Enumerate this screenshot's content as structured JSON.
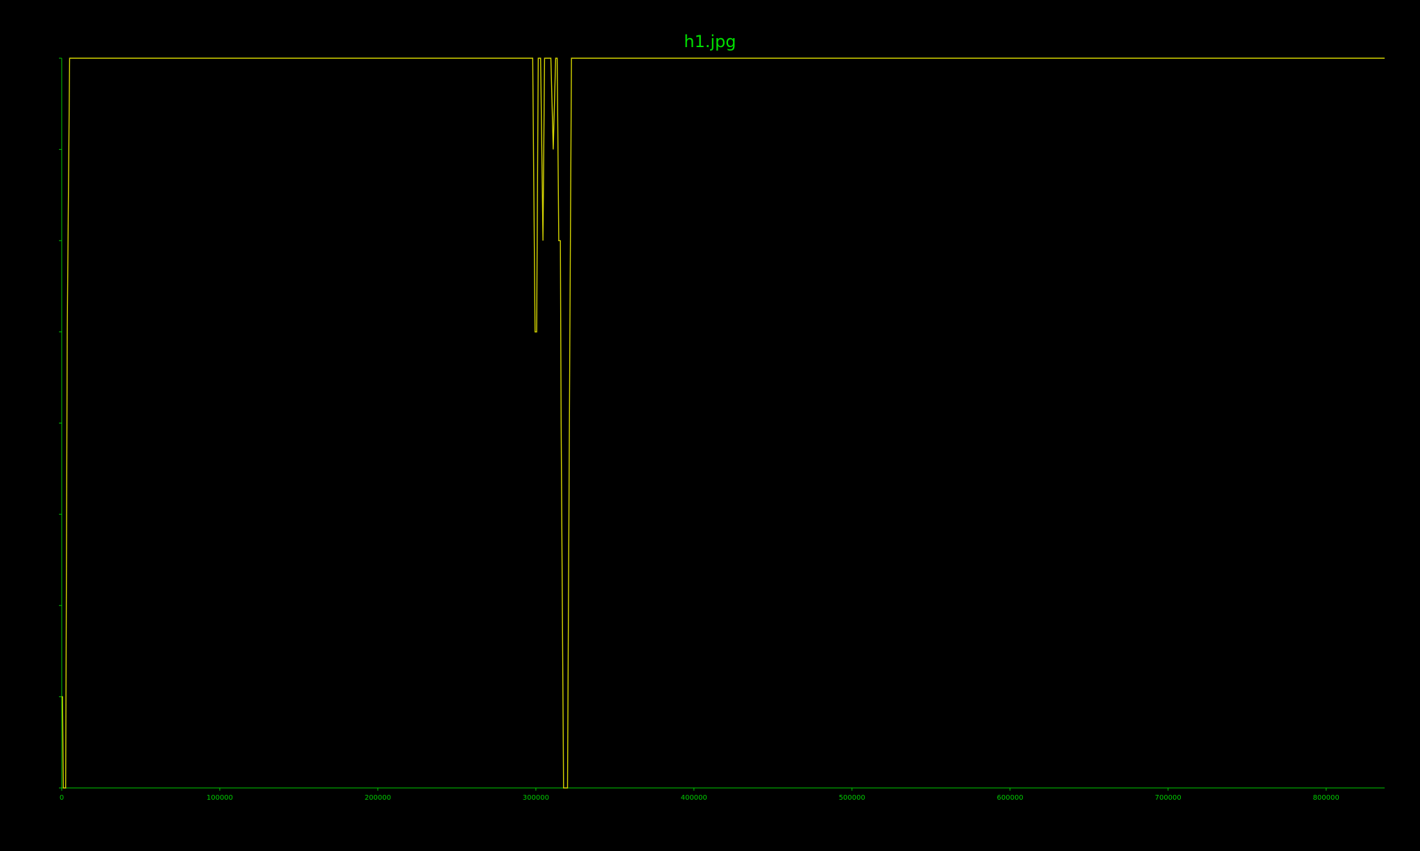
{
  "chart_data": {
    "type": "line",
    "title": "h1.jpg",
    "xlabel": "",
    "ylabel": "",
    "xlim": [
      0,
      837000
    ],
    "ylim": [
      0,
      8
    ],
    "grid": false,
    "legend": "none",
    "x_ticks": [
      0,
      100000,
      200000,
      300000,
      400000,
      500000,
      600000,
      700000,
      800000
    ],
    "x_tick_labels": [
      "0",
      "100000",
      "200000",
      "300000",
      "400000",
      "500000",
      "600000",
      "700000",
      "800000"
    ],
    "y_ticks": [
      0,
      1,
      2,
      3,
      4,
      5,
      6,
      7,
      8
    ],
    "series": [
      {
        "x": [
          0,
          500,
          1000,
          2500,
          3500,
          5000,
          298000,
          299500,
          300500,
          301500,
          303000,
          304500,
          305500,
          306500,
          309500,
          311000,
          312500,
          313500,
          314500,
          315500,
          316000,
          317500,
          319000,
          320000,
          321500,
          322500,
          323500,
          837000
        ],
        "y": [
          1,
          1,
          0,
          0,
          5,
          8,
          8,
          5,
          5,
          8,
          8,
          6,
          8,
          8,
          8,
          7,
          8,
          8,
          6,
          6,
          4,
          0,
          0,
          0,
          5,
          8,
          8,
          8
        ]
      }
    ]
  },
  "colors": {
    "background": "#000000",
    "axis": "#00cc00",
    "tick_text": "#00cc00",
    "title": "#00e000",
    "line": "#d6d600"
  }
}
